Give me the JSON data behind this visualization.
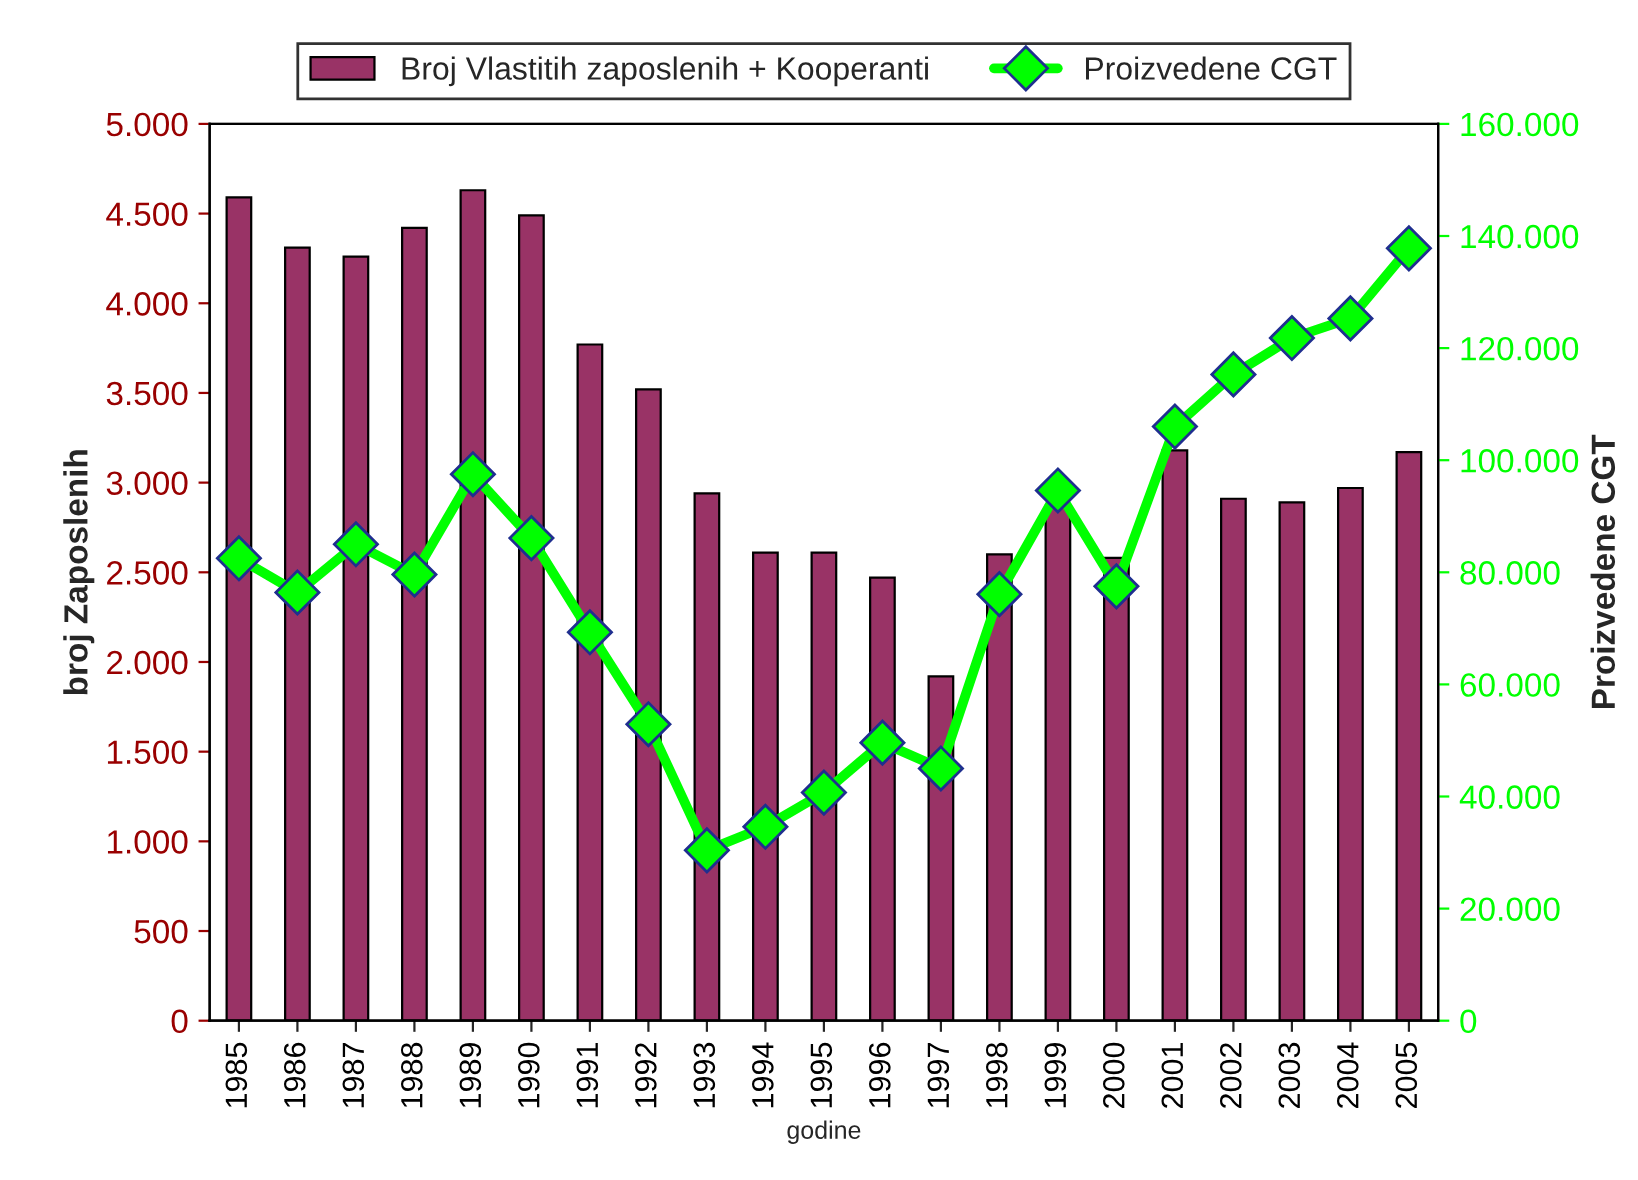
{
  "chart_data": {
    "type": "bar",
    "xlabel": "godine",
    "ylabel": "broj Zaposlenih",
    "y2label": "Proizvedene CGT",
    "categories": [
      "1985",
      "1986",
      "1987",
      "1988",
      "1989",
      "1990",
      "1991",
      "1992",
      "1993",
      "1994",
      "1995",
      "1996",
      "1997",
      "1998",
      "1999",
      "2000",
      "2001",
      "2002",
      "2003",
      "2004",
      "2005"
    ],
    "series": [
      {
        "name": "Broj Vlastitih zaposlenih + Kooperanti",
        "color": "#993366",
        "values": [
          4590,
          4310,
          4260,
          4420,
          4630,
          4490,
          3770,
          3520,
          2940,
          2610,
          2610,
          2470,
          1920,
          2600,
          2870,
          2580,
          3180,
          2910,
          2890,
          2970,
          3170
        ]
      },
      {
        "name": "Proizvedene CGT",
        "type": "line",
        "axis": "y2",
        "color": "#00ff00",
        "marker": "diamond",
        "values": [
          82500,
          76400,
          85000,
          79600,
          97500,
          86100,
          69300,
          52900,
          30400,
          34600,
          40700,
          49600,
          45000,
          76100,
          94600,
          77500,
          106000,
          115300,
          121800,
          125300,
          137800
        ]
      }
    ],
    "ylim": [
      0,
      5000
    ],
    "yticks": [
      {
        "value": 0,
        "label": "0"
      },
      {
        "value": 500,
        "label": "500"
      },
      {
        "value": 1000,
        "label": "1.000"
      },
      {
        "value": 1500,
        "label": "1.500"
      },
      {
        "value": 2000,
        "label": "2.000"
      },
      {
        "value": 2500,
        "label": "2.500"
      },
      {
        "value": 3000,
        "label": "3.000"
      },
      {
        "value": 3500,
        "label": "3.500"
      },
      {
        "value": 4000,
        "label": "4.000"
      },
      {
        "value": 4500,
        "label": "4.500"
      },
      {
        "value": 5000,
        "label": "5.000"
      }
    ],
    "y2lim": [
      0,
      160000
    ],
    "y2ticks": [
      {
        "value": 0,
        "label": "0"
      },
      {
        "value": 20000,
        "label": "20.000"
      },
      {
        "value": 40000,
        "label": "40.000"
      },
      {
        "value": 60000,
        "label": "60.000"
      },
      {
        "value": 80000,
        "label": "80.000"
      },
      {
        "value": 100000,
        "label": "100.000"
      },
      {
        "value": 120000,
        "label": "120.000"
      },
      {
        "value": 140000,
        "label": "140.000"
      },
      {
        "value": 160000,
        "label": "160.000"
      }
    ],
    "legend": "top",
    "grid": false
  }
}
